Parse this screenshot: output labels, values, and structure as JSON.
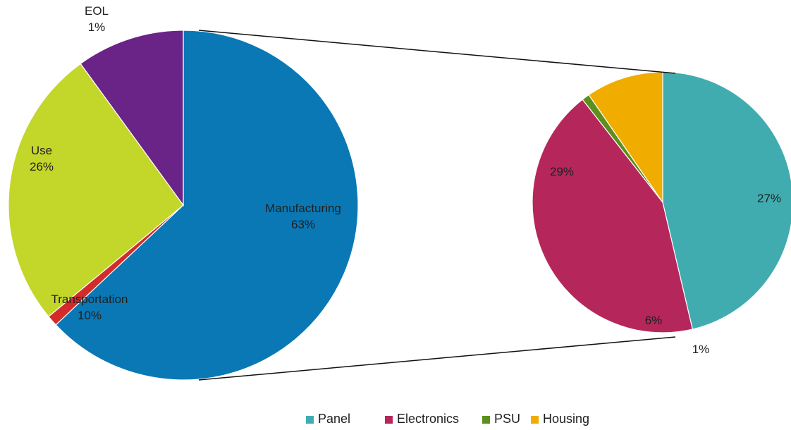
{
  "chart_data": [
    {
      "type": "pie",
      "title": "",
      "categories": [
        "Manufacturing",
        "EOL",
        "Use",
        "Transportation"
      ],
      "values": [
        63,
        1,
        26,
        10
      ],
      "labels": [
        [
          "Manufacturing",
          "63%"
        ],
        [
          "EOL",
          "1%"
        ],
        [
          "Use",
          "26%"
        ],
        [
          "Transportation",
          "10%"
        ]
      ],
      "colors": [
        "#0A78B4",
        "#D22B2B",
        "#C3D62A",
        "#6A2386"
      ],
      "start_angle_deg": -90,
      "direction": "clockwise",
      "exploded_slice": "Manufacturing"
    },
    {
      "type": "pie",
      "title": "",
      "categories": [
        "Panel",
        "Electronics",
        "PSU",
        "Housing"
      ],
      "values": [
        29,
        27,
        0.6,
        6
      ],
      "labels": [
        [
          "29%"
        ],
        [
          "27%"
        ],
        [
          "1%"
        ],
        [
          "6%"
        ]
      ],
      "colors": [
        "#41ACB0",
        "#B5275A",
        "#5C8F1B",
        "#F0AD00"
      ],
      "start_angle_deg": -90,
      "direction": "clockwise",
      "legend": {
        "placement": "bottom-right",
        "items": [
          "Panel",
          "Electronics",
          "PSU",
          "Housing"
        ]
      }
    }
  ]
}
